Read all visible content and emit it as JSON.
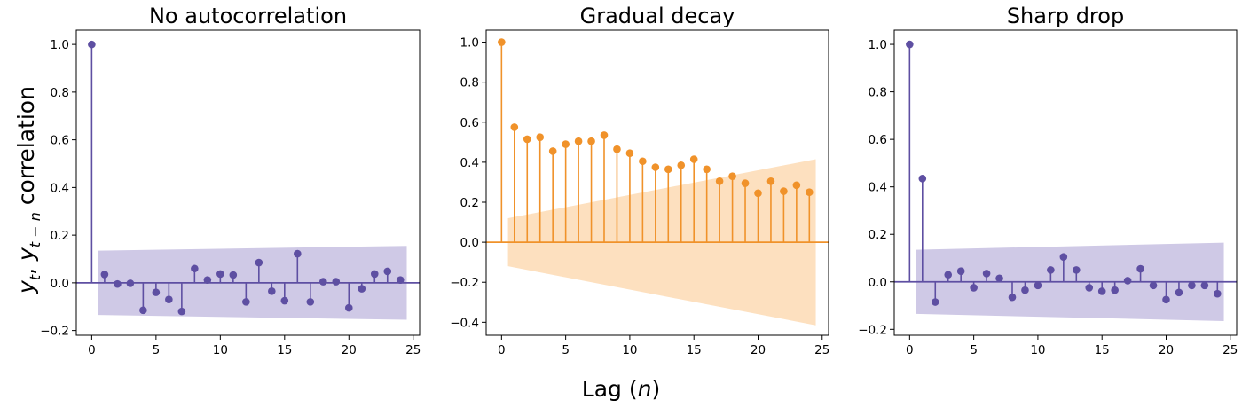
{
  "figure": {
    "xlabel_main": "Lag (",
    "xlabel_var": "n",
    "xlabel_close": ")",
    "ylabel_y": "y",
    "ylabel_sub1": "t",
    "ylabel_comma": ", ",
    "ylabel_sub2": "t − n",
    "ylabel_word": " correlation"
  },
  "chart_data": [
    {
      "type": "stem",
      "title": "No autocorrelation",
      "color": "#5e4fa2",
      "band_color": "#cfc9e6",
      "x": [
        0,
        1,
        2,
        3,
        4,
        5,
        6,
        7,
        8,
        9,
        10,
        11,
        12,
        13,
        14,
        15,
        16,
        17,
        18,
        19,
        20,
        21,
        22,
        23,
        24
      ],
      "values": [
        1.0,
        0.035,
        -0.005,
        -0.002,
        -0.115,
        -0.04,
        -0.07,
        -0.12,
        0.06,
        0.012,
        0.037,
        0.033,
        -0.08,
        0.085,
        -0.035,
        -0.075,
        0.122,
        -0.08,
        0.005,
        0.005,
        -0.105,
        -0.025,
        0.037,
        0.048,
        0.012
      ],
      "band_lag_start": 0.5,
      "band_lag_end": 24.5,
      "band_start": 0.135,
      "band_end": 0.155,
      "xlim": [
        -1.2,
        25.5
      ],
      "ylim": [
        -0.22,
        1.06
      ],
      "xticks": [
        0,
        5,
        10,
        15,
        20,
        25
      ],
      "xtick_labels": [
        "0",
        "5",
        "10",
        "15",
        "20",
        "25"
      ],
      "yticks": [
        -0.2,
        0.0,
        0.2,
        0.4,
        0.6,
        0.8,
        1.0
      ],
      "ytick_labels": [
        "−0.2",
        "0.0",
        "0.2",
        "0.4",
        "0.6",
        "0.8",
        "1.0"
      ]
    },
    {
      "type": "stem",
      "title": "Gradual decay",
      "color": "#f0922a",
      "band_color": "#fde0bf",
      "x": [
        0,
        1,
        2,
        3,
        4,
        5,
        6,
        7,
        8,
        9,
        10,
        11,
        12,
        13,
        14,
        15,
        16,
        17,
        18,
        19,
        20,
        21,
        22,
        23,
        24
      ],
      "values": [
        1.0,
        0.575,
        0.515,
        0.525,
        0.455,
        0.49,
        0.505,
        0.505,
        0.535,
        0.465,
        0.445,
        0.405,
        0.375,
        0.365,
        0.385,
        0.415,
        0.365,
        0.305,
        0.33,
        0.295,
        0.245,
        0.305,
        0.255,
        0.285,
        0.25
      ],
      "band_lag_start": 0.5,
      "band_lag_end": 24.5,
      "band_start": 0.12,
      "band_end": 0.415,
      "xlim": [
        -1.2,
        25.5
      ],
      "ylim": [
        -0.465,
        1.06
      ],
      "xticks": [
        0,
        5,
        10,
        15,
        20,
        25
      ],
      "xtick_labels": [
        "0",
        "5",
        "10",
        "15",
        "20",
        "25"
      ],
      "yticks": [
        -0.4,
        -0.2,
        0.0,
        0.2,
        0.4,
        0.6,
        0.8,
        1.0
      ],
      "ytick_labels": [
        "−0.4",
        "−0.2",
        "0.0",
        "0.2",
        "0.4",
        "0.6",
        "0.8",
        "1.0"
      ]
    },
    {
      "type": "stem",
      "title": "Sharp drop",
      "color": "#5e4fa2",
      "band_color": "#cfc9e6",
      "x": [
        0,
        1,
        2,
        3,
        4,
        5,
        6,
        7,
        8,
        9,
        10,
        11,
        12,
        13,
        14,
        15,
        16,
        17,
        18,
        19,
        20,
        21,
        22,
        23,
        24
      ],
      "values": [
        1.0,
        0.435,
        -0.085,
        0.03,
        0.045,
        -0.025,
        0.035,
        0.015,
        -0.065,
        -0.035,
        -0.015,
        0.05,
        0.105,
        0.05,
        -0.025,
        -0.04,
        -0.035,
        0.005,
        0.055,
        -0.015,
        -0.075,
        -0.045,
        -0.015,
        -0.015,
        -0.05
      ],
      "band_lag_start": 0.5,
      "band_lag_end": 24.5,
      "band_start": 0.135,
      "band_end": 0.165,
      "xlim": [
        -1.2,
        25.5
      ],
      "ylim": [
        -0.225,
        1.06
      ],
      "xticks": [
        0,
        5,
        10,
        15,
        20,
        25
      ],
      "xtick_labels": [
        "0",
        "5",
        "10",
        "15",
        "20",
        "25"
      ],
      "yticks": [
        -0.2,
        0.0,
        0.2,
        0.4,
        0.6,
        0.8,
        1.0
      ],
      "ytick_labels": [
        "−0.2",
        "0.0",
        "0.2",
        "0.4",
        "0.6",
        "0.8",
        "1.0"
      ]
    }
  ]
}
